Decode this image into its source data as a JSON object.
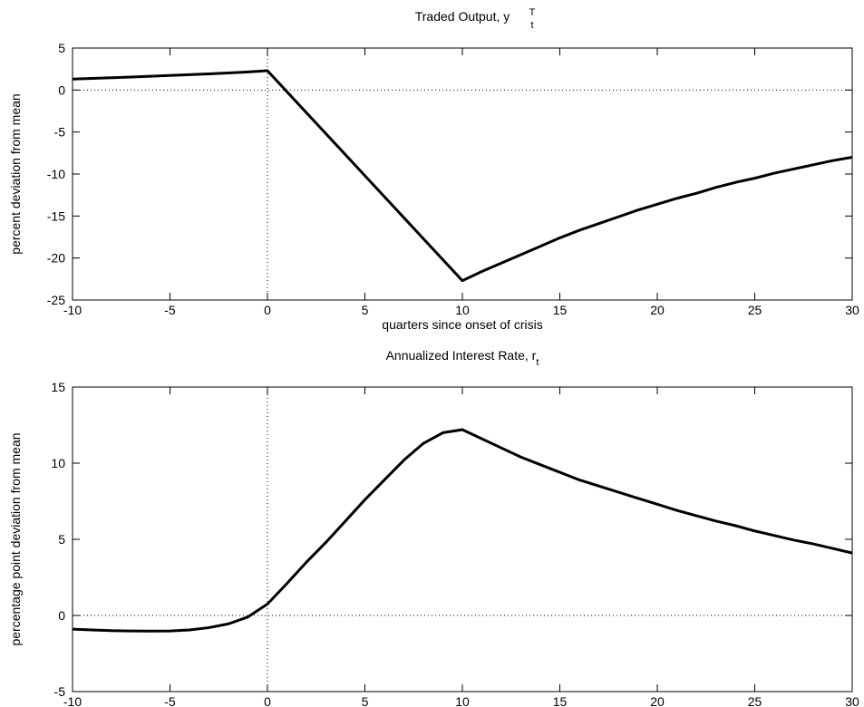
{
  "chart_data": [
    {
      "type": "line",
      "title": "Traded Output, y",
      "title_superscript": "T",
      "title_subscript": "t",
      "xlabel": "quarters since onset of crisis",
      "ylabel": "percent deviation from mean",
      "x": [
        -10,
        -9,
        -8,
        -7,
        -6,
        -5,
        -4,
        -3,
        -2,
        -1,
        0,
        1,
        2,
        3,
        4,
        5,
        6,
        7,
        8,
        9,
        10,
        11,
        12,
        13,
        14,
        15,
        16,
        17,
        18,
        19,
        20,
        21,
        22,
        23,
        24,
        25,
        26,
        27,
        28,
        29,
        30
      ],
      "series": [
        {
          "color": "#000000",
          "values": [
            1.3,
            1.38,
            1.46,
            1.55,
            1.64,
            1.73,
            1.83,
            1.93,
            2.03,
            2.15,
            2.3,
            -0.2,
            -2.7,
            -5.2,
            -7.7,
            -10.2,
            -12.7,
            -15.2,
            -17.7,
            -20.2,
            -22.7,
            -21.6,
            -20.6,
            -19.6,
            -18.6,
            -17.6,
            -16.7,
            -15.9,
            -15.1,
            -14.3,
            -13.6,
            -12.9,
            -12.3,
            -11.6,
            -11.0,
            -10.5,
            -9.9,
            -9.4,
            -8.9,
            -8.4,
            -8.0
          ]
        }
      ],
      "xlim": [
        -10,
        30
      ],
      "xticks": [
        -10,
        -5,
        0,
        5,
        10,
        15,
        20,
        25,
        30
      ],
      "ylim": [
        -25,
        5
      ],
      "yticks": [
        -25,
        -20,
        -15,
        -10,
        -5,
        0,
        5
      ],
      "zero_lines": true
    },
    {
      "type": "line",
      "title": "Annualized Interest Rate, r",
      "title_subscript": "t",
      "xlabel": "quarters since onset of crisis",
      "ylabel": "percentage point deviation from mean",
      "x": [
        -10,
        -9,
        -8,
        -7,
        -6,
        -5,
        -4,
        -3,
        -2,
        -1,
        0,
        1,
        2,
        3,
        4,
        5,
        6,
        7,
        8,
        9,
        10,
        11,
        12,
        13,
        14,
        15,
        16,
        17,
        18,
        19,
        20,
        21,
        22,
        23,
        24,
        25,
        26,
        27,
        28,
        29,
        30
      ],
      "series": [
        {
          "color": "#000000",
          "values": [
            -0.9,
            -0.95,
            -1.0,
            -1.02,
            -1.03,
            -1.02,
            -0.95,
            -0.8,
            -0.55,
            -0.1,
            0.75,
            2.1,
            3.5,
            4.8,
            6.2,
            7.6,
            8.9,
            10.2,
            11.3,
            12.0,
            12.2,
            11.6,
            11.0,
            10.4,
            9.9,
            9.4,
            8.9,
            8.5,
            8.1,
            7.7,
            7.3,
            6.9,
            6.55,
            6.2,
            5.9,
            5.55,
            5.25,
            4.95,
            4.7,
            4.4,
            4.1
          ]
        }
      ],
      "xlim": [
        -10,
        30
      ],
      "xticks": [
        -10,
        -5,
        0,
        5,
        10,
        15,
        20,
        25,
        30
      ],
      "ylim": [
        -5,
        15
      ],
      "yticks": [
        -5,
        0,
        5,
        10,
        15
      ],
      "zero_lines": true
    }
  ]
}
